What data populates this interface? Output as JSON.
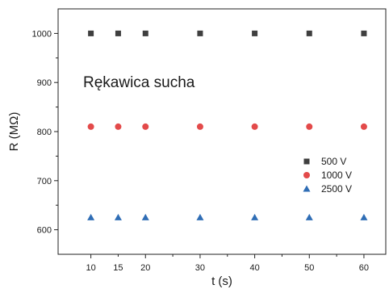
{
  "chart_data": {
    "type": "scatter",
    "x": [
      10,
      15,
      20,
      30,
      40,
      50,
      60
    ],
    "series": [
      {
        "name": "500 V",
        "values": [
          1000,
          1000,
          1000,
          1000,
          1000,
          1000,
          1000
        ],
        "marker": "square",
        "color": "#3f3f3f"
      },
      {
        "name": "1000 V",
        "values": [
          810,
          810,
          810,
          810,
          810,
          810,
          810
        ],
        "marker": "circle",
        "color": "#e34a4a"
      },
      {
        "name": "2500 V",
        "values": [
          625,
          625,
          625,
          625,
          625,
          625,
          625
        ],
        "marker": "triangle",
        "color": "#2f6db5"
      }
    ],
    "xlabel": "t (s)",
    "ylabel": "R (MΩ)",
    "xlim": [
      4,
      64
    ],
    "ylim": [
      550,
      1050
    ],
    "xticks": [
      10,
      20,
      30,
      40,
      50,
      60
    ],
    "yticks": [
      600,
      700,
      800,
      900,
      1000
    ],
    "annotation": "Rękawica sucha",
    "legend_position": "center-right",
    "grid": false
  }
}
